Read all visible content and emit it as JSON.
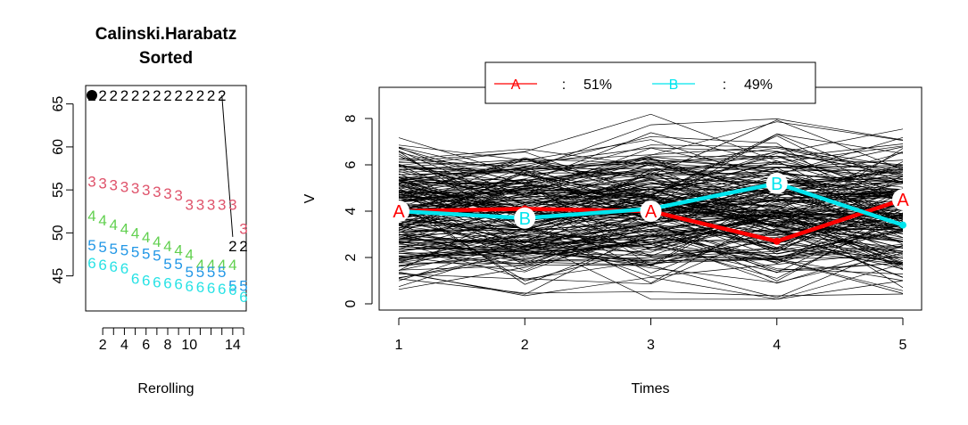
{
  "chart_data": [
    {
      "type": "scatter",
      "title": "Calinski.Harabatz",
      "subtitle": "Sorted",
      "xlabel": "Rerolling",
      "ylabel": "",
      "xlim": [
        1,
        15
      ],
      "ylim": [
        42,
        67
      ],
      "x_ticks": [
        "2",
        "4",
        "6",
        "8",
        "10",
        "14"
      ],
      "y_ticks": [
        "45",
        "50",
        "55",
        "60",
        "65"
      ],
      "grid": false,
      "series": [
        {
          "name": "2",
          "color": "#000000",
          "x": [
            1,
            2,
            3,
            4,
            5,
            6,
            7,
            8,
            9,
            10,
            11,
            12,
            13,
            14,
            15
          ],
          "values": [
            66,
            66,
            66,
            66,
            66,
            66,
            66,
            66,
            66,
            66,
            66,
            66,
            66,
            48.5,
            48.5
          ]
        },
        {
          "name": "3",
          "color": "#DF536B",
          "x": [
            1,
            2,
            3,
            4,
            5,
            6,
            7,
            8,
            9,
            10,
            11,
            12,
            13,
            14,
            15
          ],
          "values": [
            56,
            55.8,
            55.6,
            55.4,
            55.2,
            55,
            54.8,
            54.6,
            54.4,
            53.3,
            53.3,
            53.3,
            53.3,
            53.3,
            50.5
          ]
        },
        {
          "name": "4",
          "color": "#61D04F",
          "x": [
            1,
            2,
            3,
            4,
            5,
            6,
            7,
            8,
            9,
            10,
            11,
            12,
            13,
            14
          ],
          "values": [
            52,
            51.5,
            51,
            50.5,
            50,
            49.5,
            49,
            48.5,
            48,
            47.5,
            46.3,
            46.3,
            46.3,
            46.3
          ]
        },
        {
          "name": "5",
          "color": "#2297E6",
          "x": [
            1,
            2,
            3,
            4,
            5,
            6,
            7,
            8,
            9,
            10,
            11,
            12,
            13,
            14,
            15
          ],
          "values": [
            48.6,
            48.4,
            48.2,
            48,
            47.8,
            47.6,
            47.4,
            46.4,
            46.4,
            45.5,
            45.5,
            45.5,
            45.5,
            43.9,
            43.9
          ]
        },
        {
          "name": "6",
          "color": "#28E2E5",
          "x": [
            1,
            2,
            3,
            4,
            5,
            6,
            7,
            8,
            9,
            10,
            11,
            12,
            13,
            14,
            15
          ],
          "values": [
            46.5,
            46.3,
            46.1,
            45.9,
            44.7,
            44.5,
            44.3,
            44.2,
            44.1,
            43.8,
            43.7,
            43.6,
            43.5,
            43.4,
            42.6
          ]
        }
      ],
      "highlight_point": {
        "x": 1,
        "y": 66,
        "color": "#000000"
      }
    },
    {
      "type": "line",
      "title": "",
      "xlabel": "Times",
      "ylabel": "V",
      "x": [
        1,
        2,
        3,
        4,
        5
      ],
      "xlim": [
        1,
        5
      ],
      "ylim": [
        0,
        9
      ],
      "x_ticks": [
        "1",
        "2",
        "3",
        "4",
        "5"
      ],
      "y_ticks": [
        "0",
        "2",
        "4",
        "6",
        "8"
      ],
      "grid": false,
      "background_trajectories": {
        "color": "#000000",
        "count": 200,
        "range": [
          0.2,
          9
        ]
      },
      "legend": {
        "placement": "top-center",
        "entries": [
          {
            "marker": "A",
            "separator": ":",
            "label": "51%",
            "color": "#FF0000"
          },
          {
            "marker": "B",
            "separator": ":",
            "label": "49%",
            "color": "#00E5EE"
          }
        ]
      },
      "series": [
        {
          "marker": "A",
          "color": "#FF0000",
          "values": [
            4.0,
            4.1,
            4.0,
            2.7,
            4.5
          ]
        },
        {
          "marker": "B",
          "color": "#00E5EE",
          "values": [
            4.0,
            3.7,
            4.1,
            5.2,
            3.4
          ]
        }
      ],
      "labeled_points": [
        {
          "marker": "A",
          "color": "#FF0000",
          "x": 1,
          "y": 4.0
        },
        {
          "marker": "B",
          "color": "#00E5EE",
          "x": 2,
          "y": 3.7
        },
        {
          "marker": "A",
          "color": "#FF0000",
          "x": 3,
          "y": 4.0
        },
        {
          "marker": "B",
          "color": "#00E5EE",
          "x": 4,
          "y": 5.2
        },
        {
          "marker": "A",
          "color": "#FF0000",
          "x": 5,
          "y": 4.5
        }
      ]
    }
  ]
}
